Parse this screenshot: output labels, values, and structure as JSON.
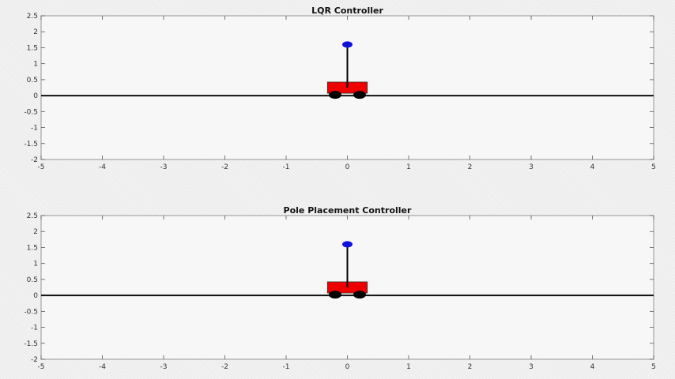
{
  "chart_data": [
    {
      "type": "scatter",
      "title": "LQR Controller",
      "xlabel": "",
      "ylabel": "",
      "xlim": [
        -5,
        5
      ],
      "ylim": [
        -2,
        2.5
      ],
      "xticks": [
        -5,
        -4,
        -3,
        -2,
        -1,
        0,
        1,
        2,
        3,
        4,
        5
      ],
      "yticks": [
        -2,
        -1.5,
        -1,
        -0.5,
        0,
        0.5,
        1,
        1.5,
        2,
        2.5
      ],
      "grid": false,
      "ground_y": 0,
      "cart": {
        "x": 0,
        "width": 0.65,
        "height": 0.35,
        "body_color": "#ee0000",
        "wheel_color": "#000000"
      },
      "pendulum": {
        "angle_deg": 0,
        "length": 1.6,
        "bob_color": "#1010dd"
      }
    },
    {
      "type": "scatter",
      "title": "Pole Placement Controller",
      "xlabel": "",
      "ylabel": "",
      "xlim": [
        -5,
        5
      ],
      "ylim": [
        -2,
        2.5
      ],
      "xticks": [
        -5,
        -4,
        -3,
        -2,
        -1,
        0,
        1,
        2,
        3,
        4,
        5
      ],
      "yticks": [
        -2,
        -1.5,
        -1,
        -0.5,
        0,
        0.5,
        1,
        1.5,
        2,
        2.5
      ],
      "grid": false,
      "ground_y": 0,
      "cart": {
        "x": 0,
        "width": 0.65,
        "height": 0.35,
        "body_color": "#ee0000",
        "wheel_color": "#000000"
      },
      "pendulum": {
        "angle_deg": 0,
        "length": 1.6,
        "bob_color": "#1010dd"
      }
    }
  ]
}
